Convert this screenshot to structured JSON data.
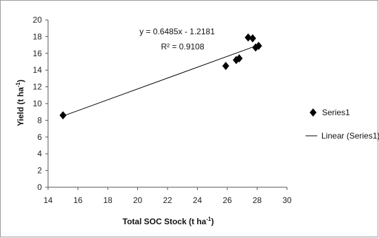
{
  "chart_data": {
    "type": "scatter",
    "title": "",
    "xlabel": "Total SOC Stock (t ha",
    "xlabel_sup": "-1",
    "xlabel_end": ")",
    "ylabel": "Yield (t ha",
    "ylabel_sup": "-1",
    "ylabel_end": ")",
    "xlim": [
      14,
      30
    ],
    "ylim": [
      0,
      20
    ],
    "xticks": [
      14,
      16,
      18,
      20,
      22,
      24,
      26,
      28,
      30
    ],
    "yticks": [
      0,
      2,
      4,
      6,
      8,
      10,
      12,
      14,
      16,
      18,
      20
    ],
    "grid": false,
    "legend_position": "right",
    "series": [
      {
        "name": "Series1",
        "marker": "diamond",
        "color": "#000000",
        "points": [
          {
            "x": 15.0,
            "y": 8.6
          },
          {
            "x": 25.9,
            "y": 14.5
          },
          {
            "x": 26.6,
            "y": 15.2
          },
          {
            "x": 26.8,
            "y": 15.4
          },
          {
            "x": 27.4,
            "y": 17.9
          },
          {
            "x": 27.7,
            "y": 17.8
          },
          {
            "x": 27.9,
            "y": 16.7
          },
          {
            "x": 28.1,
            "y": 16.9
          }
        ]
      }
    ],
    "trendline": {
      "name": "Linear (Series1)",
      "type": "linear",
      "slope": 0.6485,
      "intercept": -1.2181,
      "x_range": [
        15.0,
        28.1
      ],
      "equation": "y = 0.6485x - 1.2181",
      "r_squared_label": "R² = 0.9108",
      "color": "#000000"
    }
  }
}
